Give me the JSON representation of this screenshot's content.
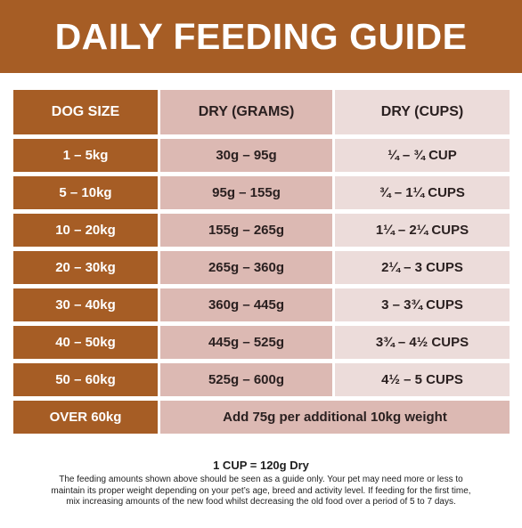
{
  "title": "DAILY FEEDING GUIDE",
  "table": {
    "headers": [
      "DOG SIZE",
      "DRY (GRAMS)",
      "DRY (CUPS)"
    ],
    "rows": [
      {
        "size": "1 – 5kg",
        "grams": "30g – 95g",
        "cups": "¼ – ¾ CUP"
      },
      {
        "size": "5 – 10kg",
        "grams": "95g – 155g",
        "cups": "¾ – 1¼ CUPS"
      },
      {
        "size": "10 – 20kg",
        "grams": "155g – 265g",
        "cups": "1¼ – 2¼ CUPS"
      },
      {
        "size": "20 – 30kg",
        "grams": "265g – 360g",
        "cups": "2¼ – 3 CUPS"
      },
      {
        "size": "30 – 40kg",
        "grams": "360g – 445g",
        "cups": "3 – 3¾ CUPS"
      },
      {
        "size": "40 – 50kg",
        "grams": "445g – 525g",
        "cups": "3¾ – 4½ CUPS"
      },
      {
        "size": "50 – 60kg",
        "grams": "525g – 600g",
        "cups": "4½ – 5 CUPS"
      }
    ],
    "last_row": {
      "size": "OVER 60kg",
      "note": "Add 75g per additional 10kg weight"
    }
  },
  "footer": {
    "cup_conversion": "1 CUP = 120g Dry",
    "disclaimer_lines": [
      "The feeding amounts shown above should be seen as a guide only. Your pet may need more or less to",
      "maintain its proper weight depending on your pet’s age, breed and activity level. If feeding for the first time,",
      "mix increasing amounts of the new food whilst decreasing the old food over a period of 5 to 7 days."
    ]
  },
  "colors": {
    "brown": "#a65d25",
    "grams_cell": "#dcb9b3",
    "cups_cell": "#ecdcda"
  }
}
